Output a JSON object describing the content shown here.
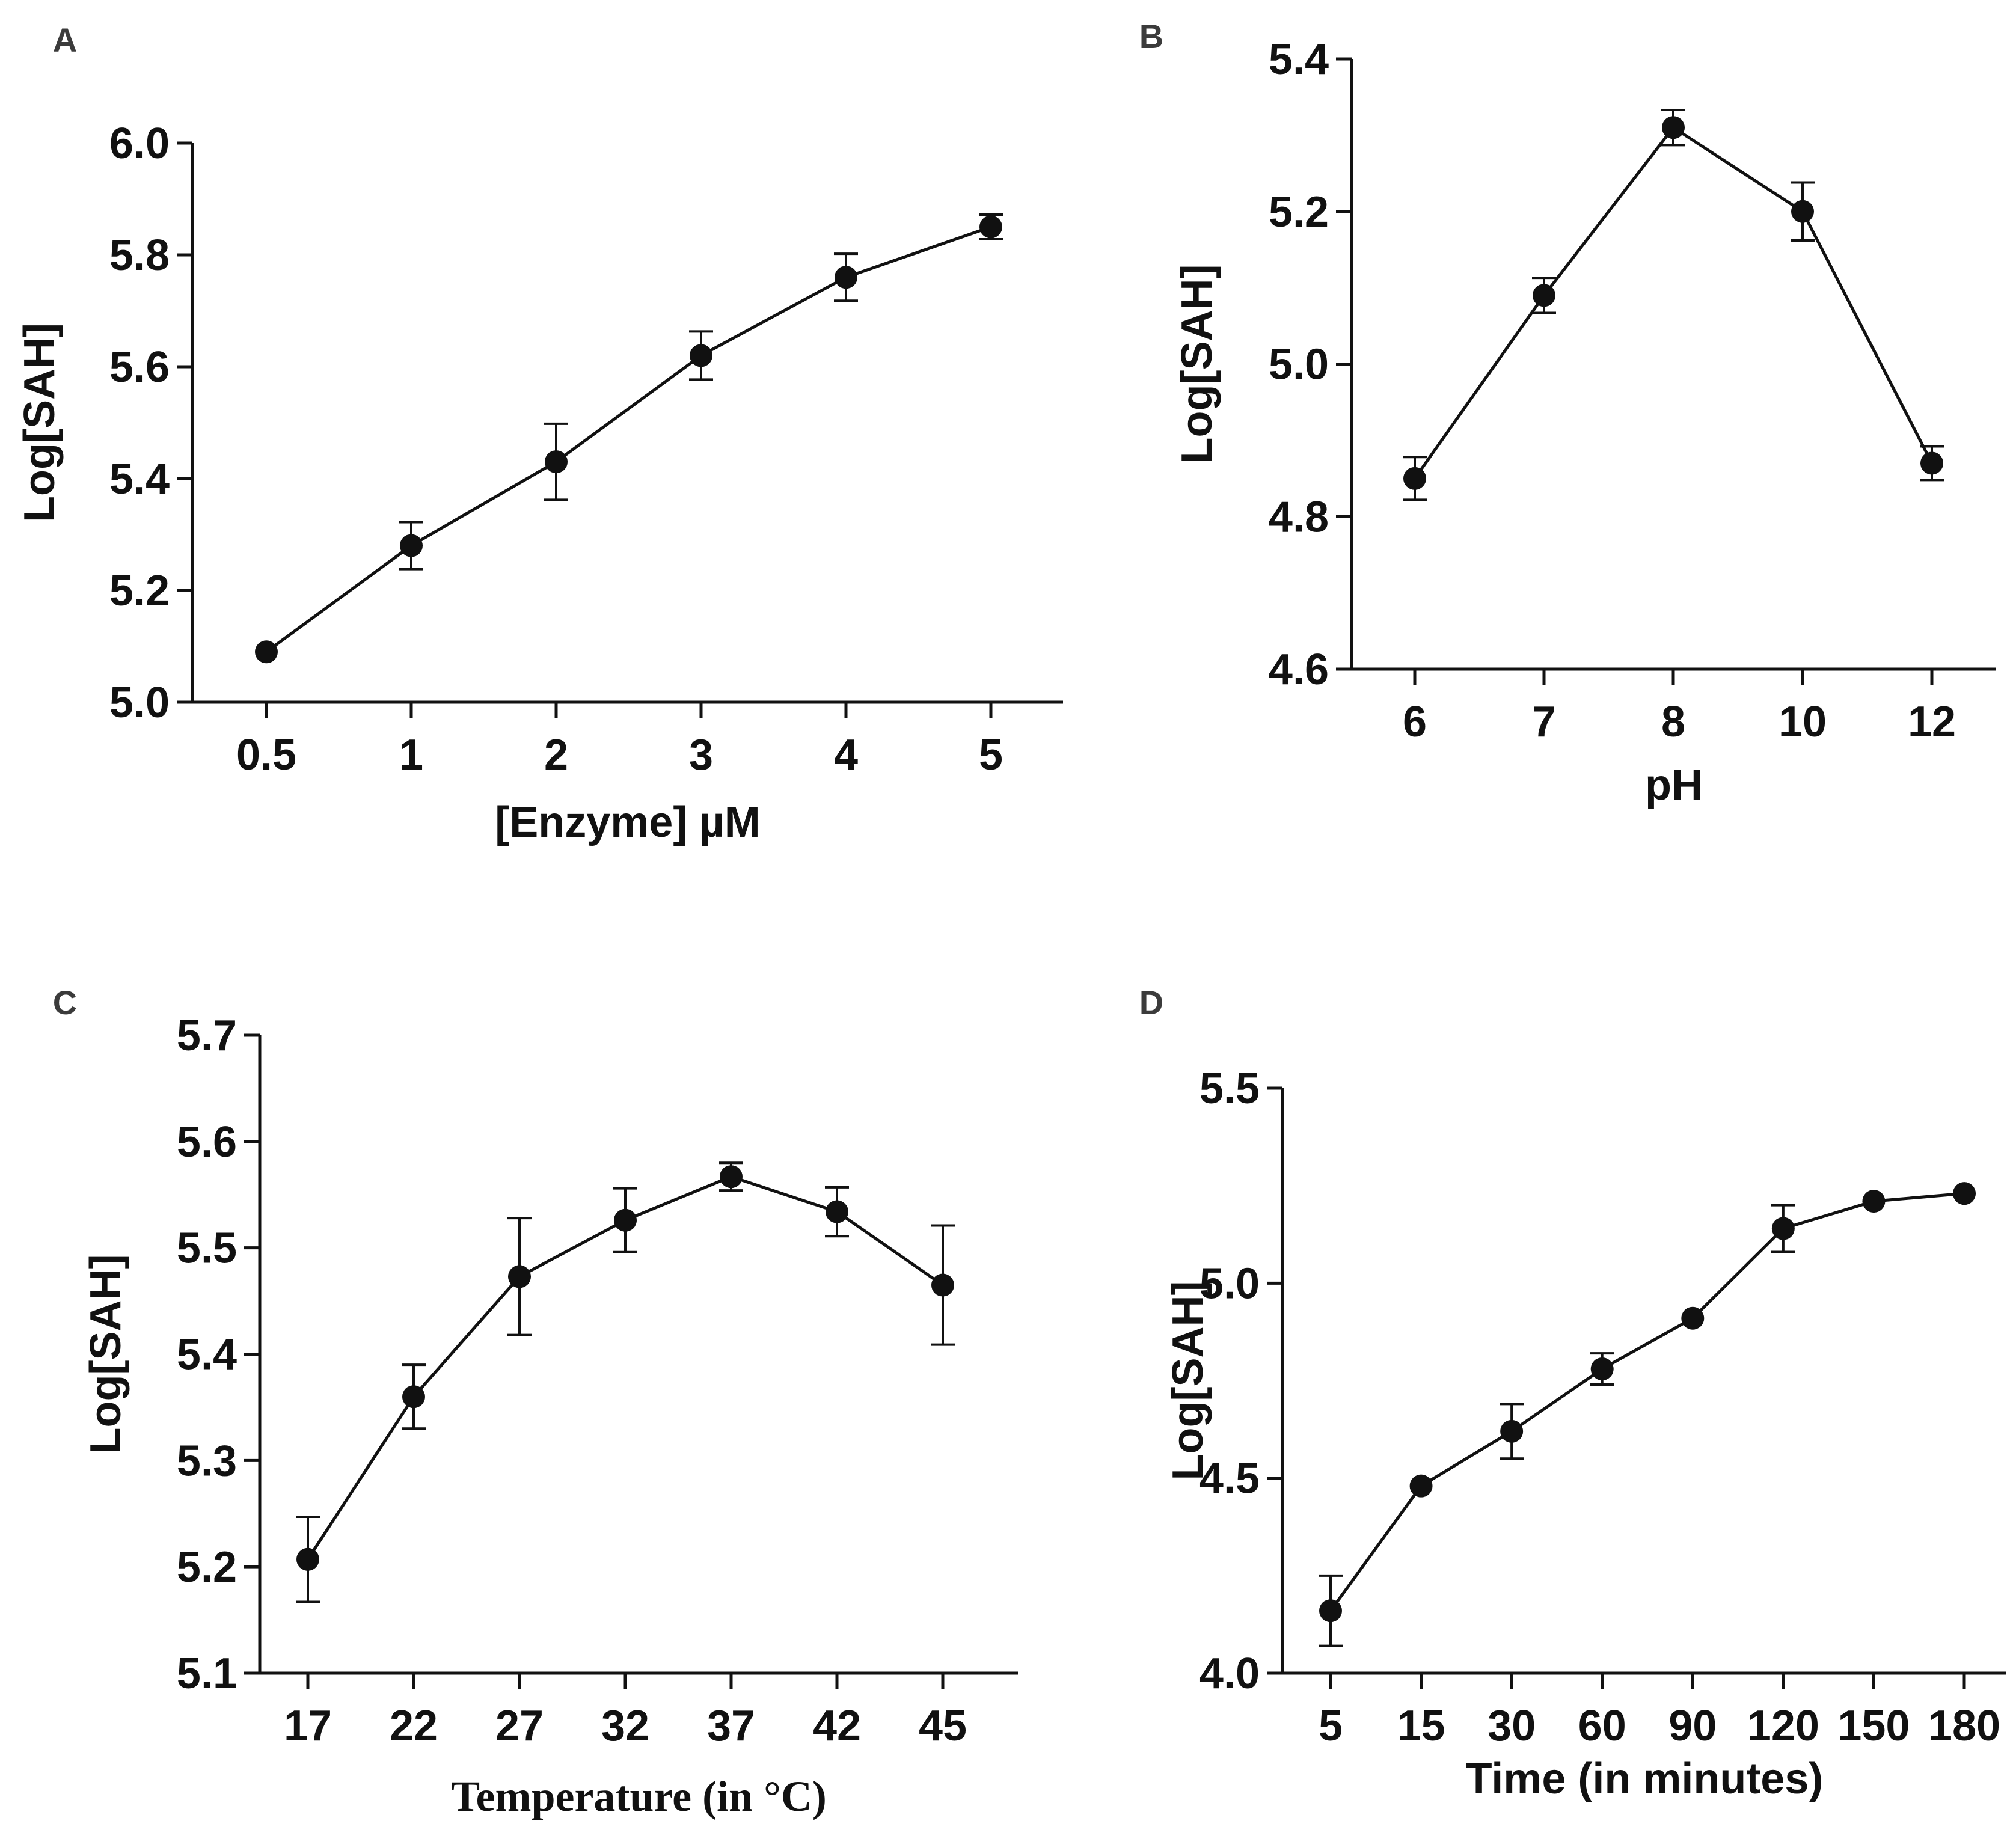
{
  "chart_data": [
    {
      "id": "A",
      "type": "line",
      "panel_label": "A",
      "title": "",
      "xlabel": "[Enzyme] µM",
      "ylabel": "Log[SAH]",
      "categories": [
        "0.5",
        "1",
        "2",
        "3",
        "4",
        "5"
      ],
      "values": [
        5.09,
        5.28,
        5.43,
        5.62,
        5.76,
        5.85
      ],
      "errors": [
        0.0,
        0.042,
        0.068,
        0.043,
        0.042,
        0.022
      ],
      "ylim": [
        5.0,
        6.0
      ],
      "yticks": [
        5.0,
        5.2,
        5.4,
        5.6,
        5.8,
        6.0
      ],
      "ytick_labels": [
        "5.0",
        "5.2",
        "5.4",
        "5.6",
        "5.8",
        "6.0"
      ],
      "grid": false,
      "legend": "none"
    },
    {
      "id": "B",
      "type": "line",
      "panel_label": "B",
      "title": "",
      "xlabel": "pH",
      "ylabel": "Log[SAH]",
      "categories": [
        "6",
        "7",
        "8",
        "10",
        "12"
      ],
      "values": [
        4.85,
        5.09,
        5.31,
        5.2,
        4.87
      ],
      "errors": [
        0.028,
        0.023,
        0.023,
        0.038,
        0.022
      ],
      "ylim": [
        4.6,
        5.4
      ],
      "yticks": [
        4.6,
        4.8,
        5.0,
        5.2,
        5.4
      ],
      "ytick_labels": [
        "4.6",
        "4.8",
        "5.0",
        "5.2",
        "5.4"
      ],
      "grid": false,
      "legend": "none"
    },
    {
      "id": "C",
      "type": "line",
      "panel_label": "C",
      "title": "",
      "xlabel": "Temperature (in °C)",
      "ylabel": "Log[SAH]",
      "categories": [
        "17",
        "22",
        "27",
        "32",
        "37",
        "42",
        "45"
      ],
      "values": [
        5.207,
        5.36,
        5.473,
        5.526,
        5.567,
        5.534,
        5.465
      ],
      "errors": [
        0.04,
        0.03,
        0.055,
        0.03,
        0.013,
        0.023,
        0.056
      ],
      "ylim": [
        5.1,
        5.7
      ],
      "yticks": [
        5.1,
        5.2,
        5.3,
        5.4,
        5.5,
        5.6,
        5.7
      ],
      "ytick_labels": [
        "5.1",
        "5.2",
        "5.3",
        "5.4",
        "5.5",
        "5.6",
        "5.7"
      ],
      "grid": false,
      "legend": "none"
    },
    {
      "id": "D",
      "type": "line",
      "panel_label": "D",
      "title": "",
      "xlabel": "Time (in minutes)",
      "ylabel": "Log[SAH]",
      "categories": [
        "5",
        "15",
        "30",
        "60",
        "90",
        "120",
        "150",
        "180"
      ],
      "values": [
        4.16,
        4.48,
        4.62,
        4.78,
        4.91,
        5.14,
        5.21,
        5.23
      ],
      "errors": [
        0.09,
        0.0,
        0.07,
        0.04,
        0.0,
        0.06,
        0.0,
        0.0
      ],
      "ylim": [
        4.0,
        5.5
      ],
      "yticks": [
        4.0,
        4.5,
        5.0,
        5.5
      ],
      "ytick_labels": [
        "4.0",
        "4.5",
        "5.0",
        "5.5"
      ],
      "grid": false,
      "legend": "none"
    }
  ]
}
